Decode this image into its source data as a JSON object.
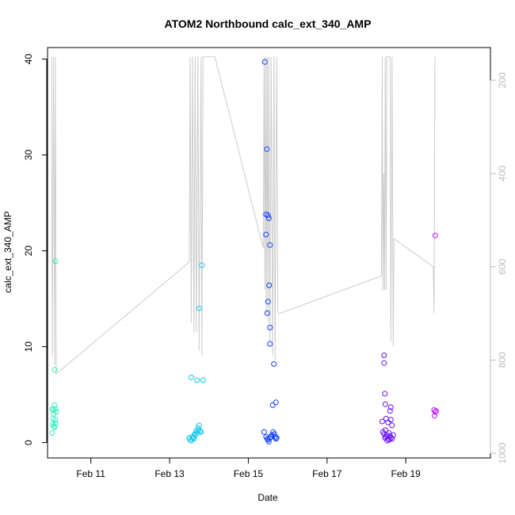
{
  "chart_data": {
    "type": "scatter",
    "title": "ATOM2 Northbound calc_ext_340_AMP",
    "xlabel": "Date",
    "ylabel": "calc_ext_340_AMP",
    "x_ticks": [
      {
        "label": "Feb 11",
        "value": 11
      },
      {
        "label": "Feb 13",
        "value": 13
      },
      {
        "label": "Feb 15",
        "value": 15
      },
      {
        "label": "Feb 17",
        "value": 17
      },
      {
        "label": "Feb 19",
        "value": 19
      }
    ],
    "xlim": [
      9.9,
      21.15
    ],
    "ylim": [
      -1.6,
      41.2
    ],
    "y_ticks": [
      0,
      10,
      20,
      30,
      40
    ],
    "y2_ticks": [
      200,
      400,
      600,
      800,
      1000
    ],
    "y2lim": [
      1010,
      130
    ],
    "y2_reversed": true,
    "grid": false,
    "legend": "none",
    "colors": {
      "axis": "#000000",
      "secondary_axis": "#bbbbbb",
      "line": "#cccccc"
    },
    "series": [
      {
        "color": "#2ef0c0",
        "points": [
          [
            10.1,
            18.9
          ],
          [
            10.08,
            7.6
          ],
          [
            10.05,
            3.4
          ],
          [
            10.02,
            3.5
          ],
          [
            10.08,
            3.9
          ],
          [
            10.1,
            3.5
          ],
          [
            10.05,
            3.0
          ],
          [
            10.12,
            3.2
          ],
          [
            10.04,
            2.5
          ],
          [
            10.1,
            2.4
          ],
          [
            10.03,
            1.9
          ],
          [
            10.06,
            1.7
          ],
          [
            10.08,
            1.6
          ],
          [
            10.1,
            2.0
          ],
          [
            10.02,
            1.0
          ]
        ]
      },
      {
        "color": "#12c8e8",
        "points": [
          [
            13.82,
            18.5
          ],
          [
            13.75,
            14.0
          ],
          [
            13.55,
            6.8
          ],
          [
            13.7,
            6.5
          ],
          [
            13.85,
            6.5
          ],
          [
            13.5,
            0.5
          ],
          [
            13.55,
            0.2
          ],
          [
            13.6,
            0.5
          ],
          [
            13.65,
            0.8
          ],
          [
            13.7,
            1.0
          ],
          [
            13.72,
            1.5
          ],
          [
            13.75,
            1.8
          ],
          [
            13.78,
            1.2
          ],
          [
            13.8,
            1.1
          ],
          [
            13.68,
            1.2
          ],
          [
            13.62,
            0.4
          ],
          [
            13.58,
            0.6
          ],
          [
            13.52,
            0.3
          ],
          [
            13.64,
            0.9
          ],
          [
            13.74,
            1.3
          ]
        ]
      },
      {
        "color": "#1040ff",
        "points": [
          [
            15.42,
            39.7
          ],
          [
            15.47,
            30.6
          ],
          [
            15.45,
            23.8
          ],
          [
            15.5,
            23.7
          ],
          [
            15.52,
            23.4
          ],
          [
            15.45,
            21.7
          ],
          [
            15.55,
            20.6
          ],
          [
            15.53,
            16.4
          ],
          [
            15.5,
            14.7
          ],
          [
            15.48,
            13.5
          ],
          [
            15.55,
            12.0
          ],
          [
            15.55,
            10.3
          ],
          [
            15.65,
            8.2
          ],
          [
            15.7,
            4.2
          ],
          [
            15.62,
            3.9
          ],
          [
            15.4,
            1.1
          ],
          [
            15.45,
            0.6
          ],
          [
            15.5,
            0.3
          ],
          [
            15.52,
            0.1
          ],
          [
            15.55,
            0.5
          ],
          [
            15.6,
            0.8
          ],
          [
            15.63,
            1.1
          ],
          [
            15.66,
            0.9
          ],
          [
            15.68,
            0.6
          ],
          [
            15.7,
            0.4
          ],
          [
            15.72,
            0.5
          ],
          [
            15.58,
            0.6
          ],
          [
            15.48,
            0.4
          ]
        ]
      },
      {
        "color": "#6a10ff",
        "points": [
          [
            18.45,
            9.1
          ],
          [
            18.45,
            8.3
          ],
          [
            18.47,
            5.1
          ],
          [
            18.48,
            4.0
          ],
          [
            18.62,
            3.7
          ],
          [
            18.6,
            3.3
          ],
          [
            18.4,
            2.2
          ],
          [
            18.5,
            2.5
          ],
          [
            18.55,
            2.1
          ],
          [
            18.62,
            2.4
          ],
          [
            18.65,
            1.8
          ],
          [
            18.42,
            1.1
          ],
          [
            18.48,
            1.3
          ],
          [
            18.5,
            0.6
          ],
          [
            18.52,
            0.8
          ],
          [
            18.55,
            0.4
          ],
          [
            18.58,
            0.3
          ],
          [
            18.6,
            0.7
          ],
          [
            18.62,
            0.5
          ],
          [
            18.65,
            0.4
          ],
          [
            18.68,
            0.8
          ],
          [
            18.53,
            0.2
          ],
          [
            18.45,
            0.9
          ],
          [
            18.57,
            1.0
          ],
          [
            18.47,
            0.5
          ]
        ]
      },
      {
        "color": "#c010ff",
        "points": [
          [
            19.75,
            21.6
          ],
          [
            19.72,
            3.4
          ],
          [
            19.75,
            3.2
          ],
          [
            19.77,
            3.3
          ],
          [
            19.73,
            2.8
          ]
        ]
      }
    ],
    "line_series": {
      "axis": "secondary",
      "points": [
        [
          10.0,
          150
        ],
        [
          10.02,
          790
        ],
        [
          10.05,
          150
        ],
        [
          10.08,
          810
        ],
        [
          10.1,
          150
        ],
        [
          10.12,
          830
        ],
        [
          13.5,
          590
        ],
        [
          13.52,
          150
        ],
        [
          13.55,
          720
        ],
        [
          13.58,
          150
        ],
        [
          13.62,
          740
        ],
        [
          13.65,
          150
        ],
        [
          13.68,
          740
        ],
        [
          13.72,
          150
        ],
        [
          13.75,
          780
        ],
        [
          13.8,
          150
        ],
        [
          13.82,
          790
        ],
        [
          13.85,
          150
        ],
        [
          14.15,
          150
        ],
        [
          15.38,
          560
        ],
        [
          15.4,
          150
        ],
        [
          15.42,
          650
        ],
        [
          15.44,
          150
        ],
        [
          15.46,
          700
        ],
        [
          15.48,
          150
        ],
        [
          15.5,
          720
        ],
        [
          15.52,
          150
        ],
        [
          15.55,
          760
        ],
        [
          15.58,
          150
        ],
        [
          15.62,
          790
        ],
        [
          15.65,
          150
        ],
        [
          15.68,
          800
        ],
        [
          15.72,
          150
        ],
        [
          15.75,
          700
        ],
        [
          15.8,
          700
        ],
        [
          18.38,
          620
        ],
        [
          18.4,
          150
        ],
        [
          18.42,
          650
        ],
        [
          18.44,
          400
        ],
        [
          18.46,
          650
        ],
        [
          18.48,
          150
        ],
        [
          18.5,
          650
        ],
        [
          18.52,
          150
        ],
        [
          18.6,
          150
        ],
        [
          18.62,
          760
        ],
        [
          18.65,
          150
        ],
        [
          18.68,
          770
        ],
        [
          18.7,
          540
        ],
        [
          19.7,
          600
        ],
        [
          19.72,
          700
        ],
        [
          19.74,
          150
        ]
      ]
    }
  }
}
